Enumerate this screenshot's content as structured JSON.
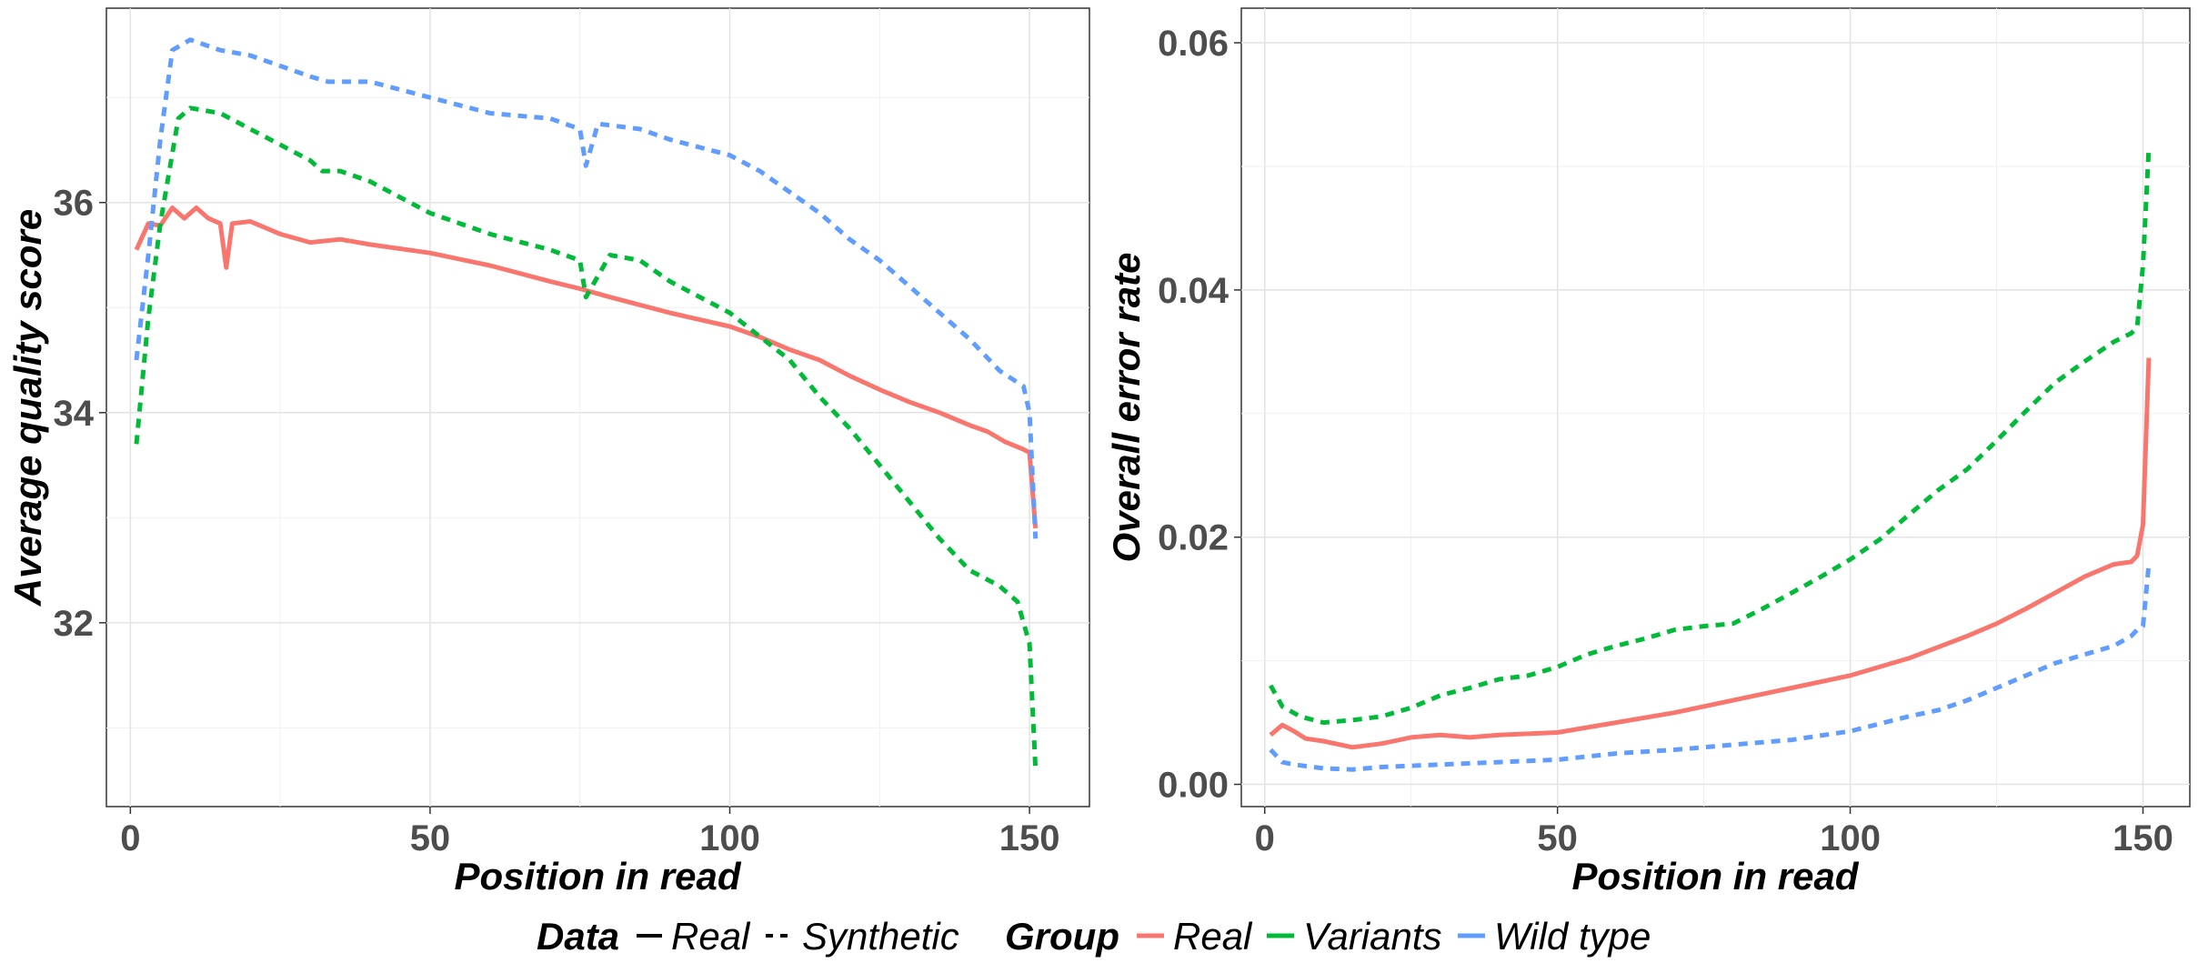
{
  "chart_data": [
    {
      "type": "line",
      "title": "",
      "xlabel": "Position in read",
      "ylabel": "Average quality score",
      "xlim": [
        -4,
        160
      ],
      "ylim": [
        30.25,
        37.85
      ],
      "xticks": [
        0,
        50,
        100,
        150
      ],
      "xtick_labels": [
        "0",
        "50",
        "100",
        "150"
      ],
      "yticks": [
        32,
        34,
        36
      ],
      "ytick_labels": [
        "32",
        "34",
        "36"
      ],
      "grid": true,
      "series": [
        {
          "data": "Real",
          "group": "Real",
          "linestyle": "solid",
          "color": "#F8766D",
          "x": [
            1,
            3,
            5,
            7,
            9,
            11,
            13,
            15,
            16,
            17,
            20,
            25,
            30,
            35,
            40,
            50,
            60,
            70,
            75,
            80,
            90,
            100,
            105,
            110,
            115,
            120,
            125,
            130,
            135,
            140,
            143,
            146,
            149,
            150,
            151
          ],
          "y": [
            35.55,
            35.8,
            35.78,
            35.95,
            35.85,
            35.95,
            35.85,
            35.8,
            35.38,
            35.8,
            35.82,
            35.7,
            35.62,
            35.65,
            35.6,
            35.52,
            35.4,
            35.25,
            35.18,
            35.1,
            34.95,
            34.82,
            34.72,
            34.6,
            34.5,
            34.35,
            34.22,
            34.1,
            34.0,
            33.88,
            33.82,
            33.72,
            33.65,
            33.62,
            32.9
          ]
        },
        {
          "data": "Synthetic",
          "group": "Variants",
          "linestyle": "dashed",
          "color": "#00BA38",
          "x": [
            1,
            3,
            5,
            8,
            10,
            15,
            20,
            25,
            30,
            32,
            35,
            40,
            50,
            60,
            70,
            75,
            76,
            80,
            85,
            90,
            100,
            110,
            115,
            120,
            125,
            130,
            135,
            140,
            145,
            148,
            150,
            151
          ],
          "y": [
            33.7,
            34.9,
            35.8,
            36.8,
            36.9,
            36.85,
            36.7,
            36.55,
            36.4,
            36.3,
            36.3,
            36.2,
            35.9,
            35.7,
            35.55,
            35.45,
            35.1,
            35.5,
            35.45,
            35.25,
            34.95,
            34.5,
            34.15,
            33.85,
            33.5,
            33.15,
            32.8,
            32.5,
            32.35,
            32.2,
            31.8,
            30.6
          ]
        },
        {
          "data": "Synthetic",
          "group": "Wild type",
          "linestyle": "dashed",
          "color": "#619CFF",
          "x": [
            1,
            3,
            5,
            7,
            10,
            15,
            20,
            25,
            30,
            33,
            40,
            50,
            60,
            70,
            75,
            76,
            78,
            85,
            90,
            100,
            105,
            110,
            115,
            120,
            125,
            130,
            135,
            140,
            145,
            149,
            150,
            151
          ],
          "y": [
            34.5,
            35.5,
            36.6,
            37.45,
            37.55,
            37.45,
            37.4,
            37.3,
            37.2,
            37.15,
            37.15,
            37.0,
            36.85,
            36.8,
            36.7,
            36.35,
            36.75,
            36.7,
            36.6,
            36.45,
            36.3,
            36.1,
            35.9,
            35.65,
            35.45,
            35.2,
            34.95,
            34.7,
            34.4,
            34.25,
            34.0,
            32.8
          ]
        }
      ]
    },
    {
      "type": "line",
      "title": "",
      "xlabel": "Position in read",
      "ylabel": "Overall error rate",
      "xlim": [
        -4,
        158
      ],
      "ylim": [
        -0.0018,
        0.0628
      ],
      "xticks": [
        0,
        50,
        100,
        150
      ],
      "xtick_labels": [
        "0",
        "50",
        "100",
        "150"
      ],
      "yticks": [
        0.0,
        0.02,
        0.04,
        0.06
      ],
      "ytick_labels": [
        "0.00",
        "0.02",
        "0.04",
        "0.06"
      ],
      "grid": true,
      "series": [
        {
          "data": "Real",
          "group": "Real",
          "linestyle": "solid",
          "color": "#F8766D",
          "x": [
            1,
            3,
            5,
            7,
            10,
            15,
            20,
            25,
            30,
            35,
            40,
            50,
            60,
            70,
            80,
            90,
            100,
            110,
            120,
            125,
            130,
            135,
            140,
            145,
            148,
            149,
            150,
            151
          ],
          "y": [
            0.004,
            0.0048,
            0.0043,
            0.0037,
            0.0035,
            0.003,
            0.0033,
            0.0038,
            0.004,
            0.0038,
            0.004,
            0.0042,
            0.005,
            0.0058,
            0.0068,
            0.0078,
            0.0088,
            0.0102,
            0.012,
            0.013,
            0.0142,
            0.0155,
            0.0168,
            0.0178,
            0.018,
            0.0185,
            0.021,
            0.0345
          ]
        },
        {
          "data": "Synthetic",
          "group": "Variants",
          "linestyle": "dashed",
          "color": "#00BA38",
          "x": [
            1,
            3,
            6,
            10,
            15,
            20,
            25,
            30,
            35,
            40,
            45,
            50,
            55,
            60,
            65,
            70,
            75,
            80,
            85,
            90,
            95,
            100,
            105,
            110,
            115,
            120,
            125,
            130,
            135,
            140,
            145,
            148,
            149,
            150,
            151
          ],
          "y": [
            0.008,
            0.0063,
            0.0055,
            0.005,
            0.0052,
            0.0055,
            0.0062,
            0.0072,
            0.0078,
            0.0085,
            0.0088,
            0.0095,
            0.0105,
            0.0112,
            0.0118,
            0.0125,
            0.0128,
            0.013,
            0.0142,
            0.0155,
            0.0168,
            0.0182,
            0.0198,
            0.0218,
            0.0238,
            0.0255,
            0.0278,
            0.0302,
            0.0325,
            0.0342,
            0.0358,
            0.0365,
            0.037,
            0.042,
            0.0515
          ]
        },
        {
          "data": "Synthetic",
          "group": "Wild type",
          "linestyle": "dashed",
          "color": "#619CFF",
          "x": [
            1,
            3,
            5,
            10,
            15,
            20,
            25,
            30,
            40,
            50,
            60,
            70,
            80,
            90,
            100,
            110,
            115,
            120,
            125,
            130,
            135,
            140,
            145,
            148,
            149,
            150,
            151
          ],
          "y": [
            0.0028,
            0.0018,
            0.0016,
            0.0013,
            0.0012,
            0.0014,
            0.0015,
            0.0016,
            0.0018,
            0.002,
            0.0025,
            0.0028,
            0.0032,
            0.0036,
            0.0043,
            0.0055,
            0.006,
            0.0068,
            0.0078,
            0.0088,
            0.0098,
            0.0105,
            0.0112,
            0.012,
            0.0125,
            0.0128,
            0.0178
          ]
        }
      ]
    }
  ],
  "legend": {
    "placement": "bottom",
    "data_title": "Data",
    "data_items": [
      {
        "label": "Real",
        "linestyle": "solid"
      },
      {
        "label": "Synthetic",
        "linestyle": "dashed"
      }
    ],
    "group_title": "Group",
    "group_items": [
      {
        "label": "Real",
        "color": "#F8766D"
      },
      {
        "label": "Variants",
        "color": "#00BA38"
      },
      {
        "label": "Wild type",
        "color": "#619CFF"
      }
    ]
  }
}
